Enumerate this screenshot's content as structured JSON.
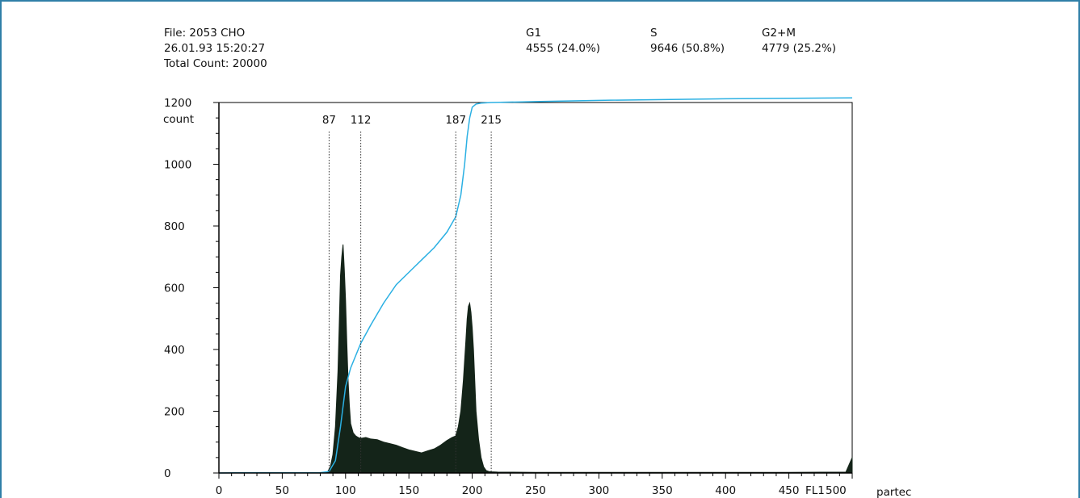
{
  "colors": {
    "frame": "#2f7fa8",
    "histogram": "#142419",
    "cumulative": "#2bb0e3",
    "axis": "#000000"
  },
  "header": {
    "file": "File: 2053 CHO",
    "datetime": "26.01.93  15:20:27",
    "total": "Total Count:  20000",
    "g1_label": "G1",
    "g1_value": "4555  (24.0%)",
    "s_label": "S",
    "s_value": "9646  (50.8%)",
    "g2m_label": "G2+M",
    "g2m_value": "4779  (25.2%)"
  },
  "brand": "partec",
  "chart_data": {
    "type": "area",
    "xlabel": "FL1",
    "ylabel": "count",
    "xlim": [
      0,
      500
    ],
    "ylim": [
      0,
      1200
    ],
    "x_ticks": [
      "0",
      "50",
      "100",
      "150",
      "200",
      "250",
      "300",
      "350",
      "400",
      "450",
      "500"
    ],
    "y_ticks": [
      "0",
      "200",
      "400",
      "600",
      "800",
      "1000",
      "1200"
    ],
    "gate_markers": [
      {
        "label": "87",
        "x": 87
      },
      {
        "label": "112",
        "x": 112
      },
      {
        "label": "187",
        "x": 187
      },
      {
        "label": "215",
        "x": 215
      }
    ],
    "series": [
      {
        "kind": "histogram",
        "x": [
          84,
          86,
          88,
          90,
          92,
          94,
          95,
          96,
          97,
          98,
          99,
          100,
          101,
          102,
          103,
          104,
          106,
          108,
          110,
          112,
          116,
          120,
          125,
          130,
          135,
          140,
          145,
          150,
          155,
          160,
          165,
          170,
          175,
          180,
          184,
          187,
          189,
          191,
          193,
          195,
          196,
          197,
          198,
          199,
          200,
          201,
          202,
          203,
          205,
          207,
          209,
          211,
          213,
          215,
          220,
          250,
          300,
          350,
          400,
          450,
          495,
          500
        ],
        "values": [
          2,
          5,
          20,
          60,
          150,
          330,
          480,
          640,
          700,
          740,
          660,
          560,
          420,
          300,
          220,
          160,
          130,
          120,
          115,
          112,
          115,
          110,
          108,
          100,
          95,
          90,
          82,
          75,
          70,
          65,
          72,
          78,
          90,
          105,
          115,
          120,
          150,
          200,
          300,
          430,
          500,
          540,
          550,
          520,
          470,
          400,
          300,
          200,
          110,
          50,
          20,
          8,
          5,
          4,
          3,
          2,
          2,
          2,
          2,
          2,
          3,
          50
        ]
      },
      {
        "kind": "cumulative",
        "x": [
          0,
          20,
          80,
          87,
          92,
          96,
          100,
          104,
          108,
          112,
          120,
          130,
          140,
          150,
          160,
          170,
          180,
          187,
          191,
          194,
          196,
          198,
          200,
          203,
          207,
          215,
          250,
          300,
          400,
          500
        ],
        "values": [
          0,
          1,
          1,
          5,
          40,
          150,
          280,
          340,
          380,
          420,
          480,
          550,
          610,
          650,
          690,
          730,
          780,
          830,
          900,
          1000,
          1090,
          1150,
          1185,
          1195,
          1198,
          1200,
          1203,
          1207,
          1212,
          1215
        ]
      }
    ]
  }
}
